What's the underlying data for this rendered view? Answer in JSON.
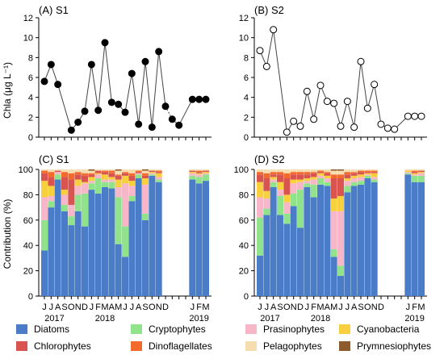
{
  "figure": {
    "y_label_top": "Chla (μg L⁻¹)",
    "y_label_bottom": "Contribution (%)",
    "months": [
      "J",
      "J",
      "A",
      "S",
      "O",
      "N",
      "D",
      "J",
      "F",
      "M",
      "A",
      "M",
      "J",
      "J",
      "A",
      "S",
      "O",
      "N",
      "D",
      "J",
      "F",
      "M"
    ],
    "years": [
      "2017",
      "2018",
      "2019"
    ],
    "legend": [
      {
        "name": "Diatoms",
        "color": "#4a7cc7"
      },
      {
        "name": "Cryptophytes",
        "color": "#90e38a"
      },
      {
        "name": "Prasinophytes",
        "color": "#f7b7c8"
      },
      {
        "name": "Cyanobacteria",
        "color": "#f8cf3c"
      },
      {
        "name": "Chlorophytes",
        "color": "#d9534f"
      },
      {
        "name": "Dinoflagellates",
        "color": "#f26a2c"
      },
      {
        "name": "Pelagophytes",
        "color": "#f6ddb0"
      },
      {
        "name": "Prymnesiophytes",
        "color": "#8c5a2b"
      }
    ]
  },
  "chart_data": [
    {
      "type": "line",
      "title": "(A) S1",
      "xlabel": "",
      "ylabel": "Chla (μg L⁻¹)",
      "ylim": [
        0,
        12
      ],
      "yticks": [
        0,
        2,
        4,
        6,
        8,
        10,
        12
      ],
      "marker": "filled-circle",
      "x": [
        0,
        1,
        2,
        4,
        5,
        6,
        7,
        8,
        9,
        10,
        11,
        12,
        13,
        14,
        15,
        16,
        17,
        18,
        19,
        20,
        22,
        23,
        24
      ],
      "y": [
        5.6,
        7.3,
        5.3,
        0.7,
        1.5,
        2.6,
        7.3,
        2.7,
        9.5,
        3.5,
        3.3,
        2.5,
        6.4,
        1.3,
        7.6,
        1.0,
        8.6,
        3.1,
        1.8,
        1.2,
        3.8,
        3.8,
        3.8
      ],
      "gap_dotted_after_index": 17
    },
    {
      "type": "line",
      "title": "(B) S2",
      "xlabel": "",
      "ylabel": "",
      "ylim": [
        0,
        12
      ],
      "yticks": [
        0,
        2,
        4,
        6,
        8,
        10,
        12
      ],
      "marker": "open-circle",
      "x": [
        0,
        1,
        2,
        4,
        5,
        6,
        7,
        8,
        9,
        10,
        11,
        12,
        13,
        14,
        15,
        16,
        17,
        18,
        19,
        20,
        22,
        23,
        24
      ],
      "y": [
        8.7,
        7.1,
        10.8,
        0.5,
        1.6,
        1.1,
        4.6,
        1.8,
        5.2,
        3.6,
        3.4,
        1.1,
        3.6,
        1.0,
        7.6,
        2.9,
        5.3,
        1.3,
        0.9,
        0.8,
        2.1,
        2.1,
        2.1
      ],
      "gap_dotted_after_index": 17
    },
    {
      "type": "bar",
      "stacked": true,
      "title": "(C) S1",
      "ylabel": "Contribution (%)",
      "ylim": [
        0,
        100
      ],
      "yticks": [
        0,
        20,
        40,
        60,
        80,
        100
      ],
      "series_order": [
        "Diatoms",
        "Cryptophytes",
        "Prasinophytes",
        "Cyanobacteria",
        "Chlorophytes",
        "Dinoflagellates",
        "Pelagophytes",
        "Prymnesiophytes"
      ],
      "bars": [
        [
          36,
          24,
          18,
          13,
          6,
          2,
          1,
          0
        ],
        [
          70,
          5,
          4,
          8,
          7,
          4,
          2,
          0
        ],
        [
          92,
          4,
          2,
          0,
          1,
          0,
          1,
          0
        ],
        [
          67,
          5,
          8,
          4,
          10,
          4,
          2,
          0
        ],
        [
          56,
          7,
          9,
          0,
          20,
          5,
          3,
          0
        ],
        [
          67,
          13,
          7,
          5,
          4,
          2,
          2,
          0
        ],
        [
          55,
          26,
          8,
          1,
          5,
          2,
          3,
          0
        ],
        [
          84,
          5,
          2,
          3,
          2,
          1,
          2,
          1
        ],
        [
          81,
          12,
          3,
          1,
          2,
          0,
          1,
          0
        ],
        [
          86,
          4,
          2,
          4,
          2,
          1,
          1,
          0
        ],
        [
          85,
          5,
          2,
          2,
          3,
          2,
          1,
          0
        ],
        [
          41,
          37,
          8,
          6,
          3,
          1,
          3,
          1
        ],
        [
          31,
          24,
          34,
          6,
          2,
          1,
          2,
          0
        ],
        [
          75,
          4,
          8,
          4,
          4,
          2,
          3,
          0
        ],
        [
          93,
          3,
          1,
          0,
          1,
          1,
          1,
          0
        ],
        [
          60,
          5,
          23,
          5,
          2,
          2,
          2,
          1
        ],
        [
          95,
          1,
          1,
          1,
          1,
          0,
          1,
          0
        ],
        [
          90,
          2,
          2,
          3,
          1,
          1,
          1,
          0
        ],
        null,
        null,
        [
          92,
          3,
          2,
          1,
          1,
          0,
          1,
          0
        ],
        [
          89,
          5,
          2,
          1,
          1,
          1,
          1,
          0
        ],
        [
          91,
          5,
          1,
          1,
          1,
          0,
          1,
          0
        ]
      ]
    },
    {
      "type": "bar",
      "stacked": true,
      "title": "(D) S2",
      "ylabel": "",
      "ylim": [
        0,
        100
      ],
      "yticks": [
        0,
        20,
        40,
        60,
        80,
        100
      ],
      "series_order": [
        "Diatoms",
        "Cryptophytes",
        "Prasinophytes",
        "Cyanobacteria",
        "Chlorophytes",
        "Dinoflagellates",
        "Pelagophytes",
        "Prymnesiophytes"
      ],
      "bars": [
        [
          32,
          30,
          16,
          12,
          6,
          2,
          2,
          0
        ],
        [
          64,
          5,
          8,
          6,
          10,
          4,
          3,
          0
        ],
        [
          86,
          4,
          2,
          2,
          2,
          2,
          2,
          0
        ],
        [
          64,
          15,
          5,
          6,
          6,
          2,
          2,
          0
        ],
        [
          57,
          8,
          9,
          6,
          13,
          4,
          3,
          0
        ],
        [
          71,
          10,
          8,
          3,
          4,
          2,
          2,
          0
        ],
        [
          54,
          30,
          6,
          2,
          4,
          2,
          2,
          0
        ],
        [
          86,
          3,
          2,
          2,
          3,
          2,
          2,
          0
        ],
        [
          78,
          10,
          4,
          2,
          3,
          1,
          2,
          0
        ],
        [
          88,
          5,
          2,
          2,
          1,
          1,
          1,
          0
        ],
        [
          87,
          3,
          3,
          2,
          2,
          1,
          2,
          0
        ],
        [
          31,
          6,
          30,
          10,
          16,
          3,
          3,
          1
        ],
        [
          16,
          8,
          43,
          12,
          14,
          3,
          3,
          1
        ],
        [
          82,
          5,
          4,
          2,
          3,
          2,
          2,
          0
        ],
        [
          87,
          3,
          3,
          2,
          2,
          1,
          2,
          0
        ],
        [
          88,
          3,
          3,
          2,
          2,
          1,
          1,
          0
        ],
        [
          93,
          2,
          1,
          1,
          1,
          1,
          1,
          0
        ],
        [
          90,
          2,
          2,
          3,
          1,
          1,
          1,
          0
        ],
        null,
        null,
        [
          96,
          1,
          1,
          1,
          0,
          0,
          1,
          0
        ],
        [
          90,
          5,
          1,
          1,
          1,
          1,
          1,
          0
        ],
        [
          90,
          5,
          2,
          1,
          1,
          0,
          1,
          0
        ]
      ]
    }
  ]
}
